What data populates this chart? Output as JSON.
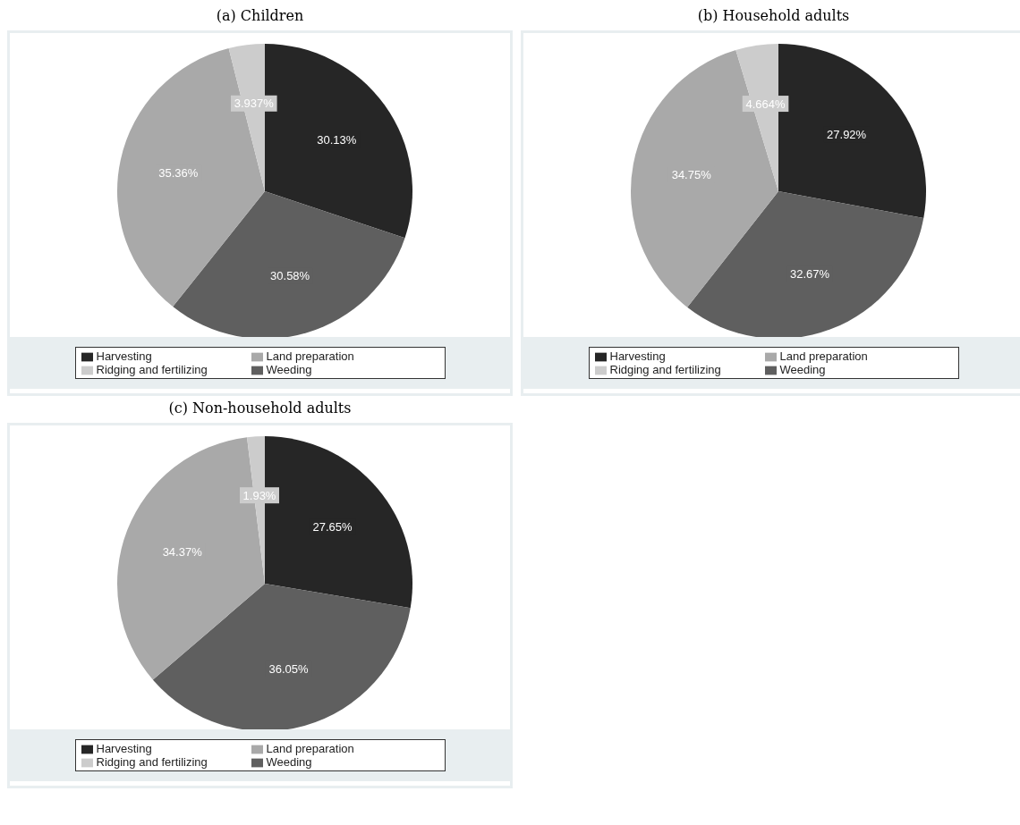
{
  "chart_data": [
    {
      "type": "pie",
      "title": "(a) Children",
      "categories": [
        "Harvesting",
        "Weeding",
        "Land preparation",
        "Ridging and fertilizing"
      ],
      "values": [
        30.13,
        30.58,
        35.36,
        3.937
      ],
      "value_labels": [
        "30.13%",
        "30.58%",
        "35.36%",
        "3.937%"
      ],
      "colors": [
        "#262626",
        "#5f5f5f",
        "#a9a9a9",
        "#cccccc"
      ],
      "legend": "bottom"
    },
    {
      "type": "pie",
      "title": "(b) Household adults",
      "categories": [
        "Harvesting",
        "Weeding",
        "Land preparation",
        "Ridging and fertilizing"
      ],
      "values": [
        27.92,
        32.67,
        34.75,
        4.664
      ],
      "value_labels": [
        "27.92%",
        "32.67%",
        "34.75%",
        "4.664%"
      ],
      "colors": [
        "#262626",
        "#5f5f5f",
        "#a9a9a9",
        "#cccccc"
      ],
      "legend": "bottom"
    },
    {
      "type": "pie",
      "title": "(c) Non-household adults",
      "categories": [
        "Harvesting",
        "Weeding",
        "Land preparation",
        "Ridging and fertilizing"
      ],
      "values": [
        27.65,
        36.05,
        34.37,
        1.93
      ],
      "value_labels": [
        "27.65%",
        "36.05%",
        "34.37%",
        "1.93%"
      ],
      "colors": [
        "#262626",
        "#5f5f5f",
        "#a9a9a9",
        "#cccccc"
      ],
      "legend": "bottom"
    }
  ]
}
